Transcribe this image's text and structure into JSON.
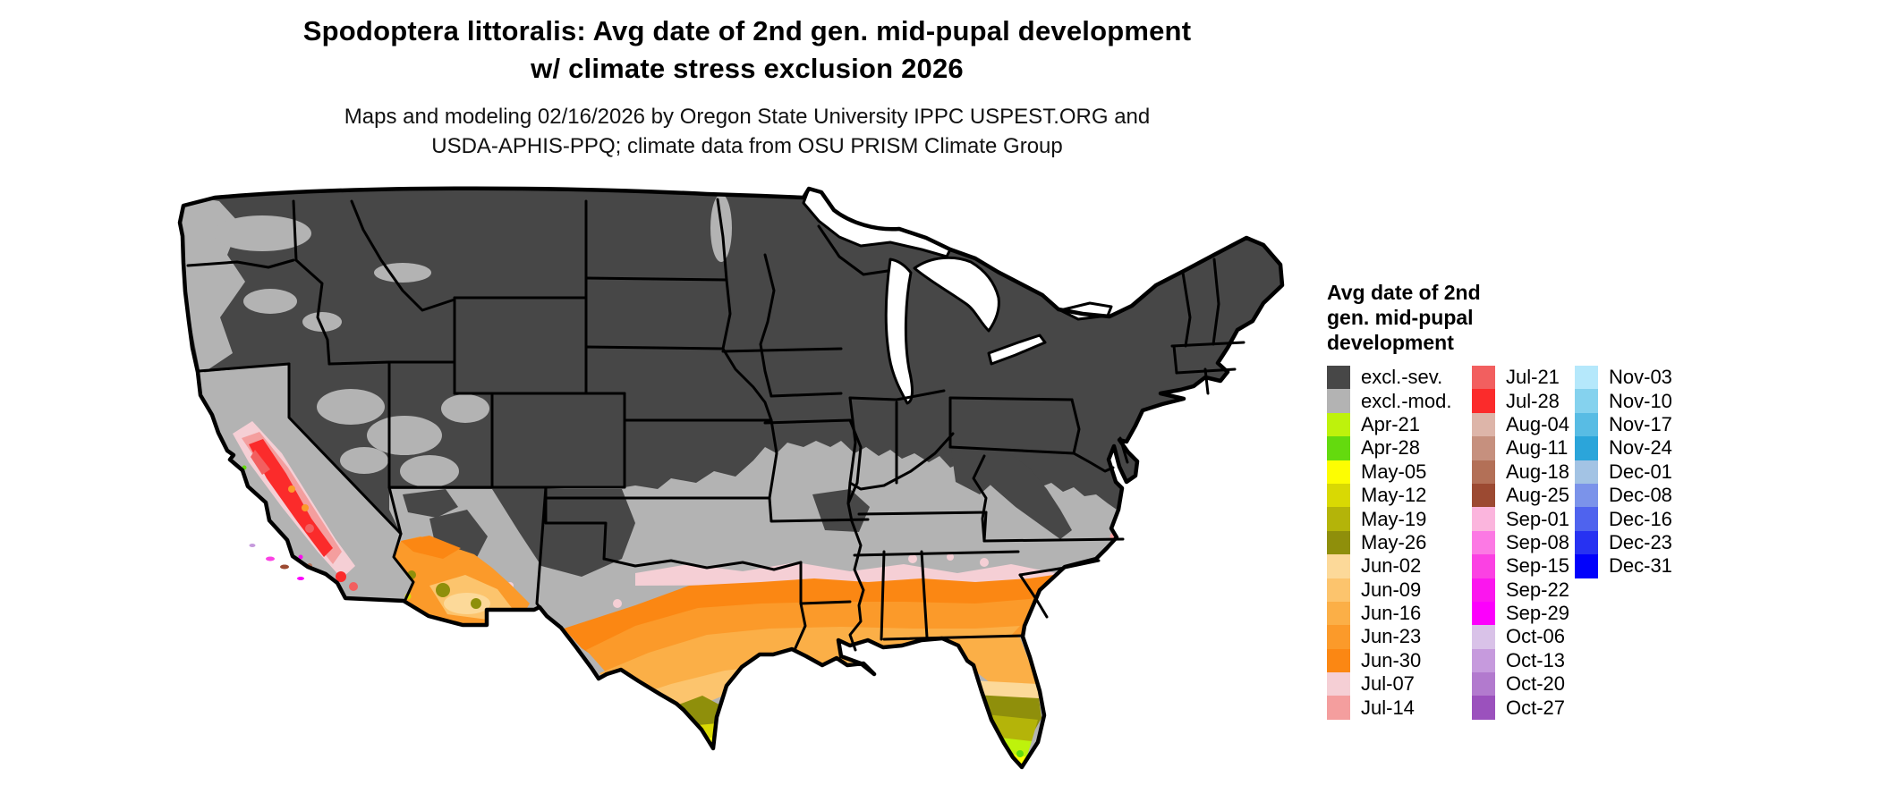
{
  "title": {
    "line1": "Spodoptera littoralis: Avg date of 2nd gen. mid-pupal development",
    "line2": "w/ climate stress exclusion 2026"
  },
  "subtitle": {
    "line1": "Maps and modeling 02/16/2026 by Oregon State University IPPC USPEST.ORG and",
    "line2": "USDA-APHIS-PPQ; climate data from OSU PRISM Climate Group"
  },
  "legend": {
    "title_lines": [
      "Avg date of 2nd",
      "gen. mid-pupal",
      "development"
    ],
    "columns": [
      [
        {
          "label": "excl.-sev.",
          "color": "#474747"
        },
        {
          "label": "excl.-mod.",
          "color": "#b3b3b3"
        },
        {
          "label": "Apr-21",
          "color": "#bef20c"
        },
        {
          "label": "Apr-28",
          "color": "#64da0e"
        },
        {
          "label": "May-05",
          "color": "#fdfd02"
        },
        {
          "label": "May-12",
          "color": "#d9d903"
        },
        {
          "label": "May-19",
          "color": "#b4b409"
        },
        {
          "label": "May-26",
          "color": "#8f8f0b"
        },
        {
          "label": "Jun-02",
          "color": "#fcd999"
        },
        {
          "label": "Jun-09",
          "color": "#fcc46d"
        },
        {
          "label": "Jun-16",
          "color": "#fbaf47"
        },
        {
          "label": "Jun-23",
          "color": "#fb9a2a"
        },
        {
          "label": "Jun-30",
          "color": "#fb8713"
        },
        {
          "label": "Jul-07",
          "color": "#f5cfd5"
        },
        {
          "label": "Jul-14",
          "color": "#f49e9e"
        }
      ],
      [
        {
          "label": "Jul-21",
          "color": "#f25f5f"
        },
        {
          "label": "Jul-28",
          "color": "#fb2b2b"
        },
        {
          "label": "Aug-04",
          "color": "#ddb5a9"
        },
        {
          "label": "Aug-11",
          "color": "#c6907e"
        },
        {
          "label": "Aug-18",
          "color": "#b37057"
        },
        {
          "label": "Aug-25",
          "color": "#9c4a32"
        },
        {
          "label": "Sep-01",
          "color": "#fbb5dd"
        },
        {
          "label": "Sep-08",
          "color": "#fc79e4"
        },
        {
          "label": "Sep-15",
          "color": "#fb41e3"
        },
        {
          "label": "Sep-22",
          "color": "#fb16ee"
        },
        {
          "label": "Sep-29",
          "color": "#fc00fc"
        },
        {
          "label": "Oct-06",
          "color": "#d9c2e8"
        },
        {
          "label": "Oct-13",
          "color": "#c69add"
        },
        {
          "label": "Oct-20",
          "color": "#b27ace"
        },
        {
          "label": "Oct-27",
          "color": "#9b51bd"
        }
      ],
      [
        {
          "label": "Nov-03",
          "color": "#b5e8fb"
        },
        {
          "label": "Nov-10",
          "color": "#85d2ee"
        },
        {
          "label": "Nov-17",
          "color": "#58bce4"
        },
        {
          "label": "Nov-24",
          "color": "#2ba5da"
        },
        {
          "label": "Dec-01",
          "color": "#a3c3e4"
        },
        {
          "label": "Dec-08",
          "color": "#7b93ea"
        },
        {
          "label": "Dec-16",
          "color": "#4f63ee"
        },
        {
          "label": "Dec-23",
          "color": "#2732f2"
        },
        {
          "label": "Dec-31",
          "color": "#0202fb"
        }
      ]
    ]
  },
  "map": {
    "type": "choropleth-map",
    "area": "Contiguous United States with state borders",
    "border_color": "#000000",
    "background": "#ffffff",
    "regions": [
      {
        "zone": "Northern and mountain states",
        "value": "excl.-sev.",
        "color": "#474747"
      },
      {
        "zone": "Mid-latitude band (OK, MO, KY, TN, VA, Carolinas, NM, west TX, PNW coast)",
        "value": "excl.-mod.",
        "color": "#b3b3b3"
      },
      {
        "zone": "Gulf Coast band (TX to GA/SC coast)",
        "value": "Jun-02 to Jun-30",
        "color": "#fb8713"
      },
      {
        "zone": "South Texas",
        "value": "May-05 to May-26",
        "color": "#b4b409"
      },
      {
        "zone": "Central/South Florida",
        "value": "Apr-21 to May-26",
        "color": "#bef20c"
      },
      {
        "zone": "California Central Valley",
        "value": "Jul-14 to Jul-28",
        "color": "#fb2b2b"
      },
      {
        "zone": "California coast specks",
        "value": "Aug-Oct dates",
        "color": "#fb41e3"
      },
      {
        "zone": "Southern Arizona",
        "value": "Jun-09 to Jun-30 with May olive spots",
        "color": "#fb9a2a"
      },
      {
        "zone": "Outer Banks NC speck",
        "value": "Jul-14",
        "color": "#f49e9e"
      }
    ]
  }
}
